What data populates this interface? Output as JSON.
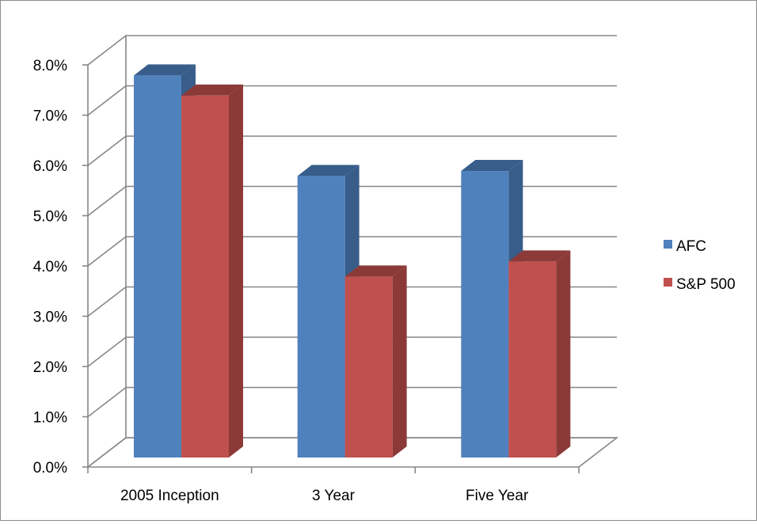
{
  "chart_data": {
    "type": "bar",
    "variant": "3d-clustered-column",
    "title": "",
    "xlabel": "",
    "ylabel": "",
    "categories": [
      "2005 Inception",
      "3 Year",
      "Five Year"
    ],
    "series": [
      {
        "name": "AFC",
        "values": [
          0.076,
          0.056,
          0.057
        ],
        "color": "#4f81bd",
        "side_color": "#385d8a"
      },
      {
        "name": "S&P 500",
        "values": [
          0.072,
          0.036,
          0.039
        ],
        "color": "#c0504d",
        "side_color": "#8b3a38"
      }
    ],
    "ylim": [
      0,
      0.08
    ],
    "yticks": [
      0,
      0.01,
      0.02,
      0.03,
      0.04,
      0.05,
      0.06,
      0.07,
      0.08
    ],
    "ytick_labels": [
      "0.0%",
      "1.0%",
      "2.0%",
      "3.0%",
      "4.0%",
      "5.0%",
      "6.0%",
      "7.0%",
      "8.0%"
    ],
    "grid": true,
    "legend": "right",
    "gridline_color": "#868686"
  }
}
